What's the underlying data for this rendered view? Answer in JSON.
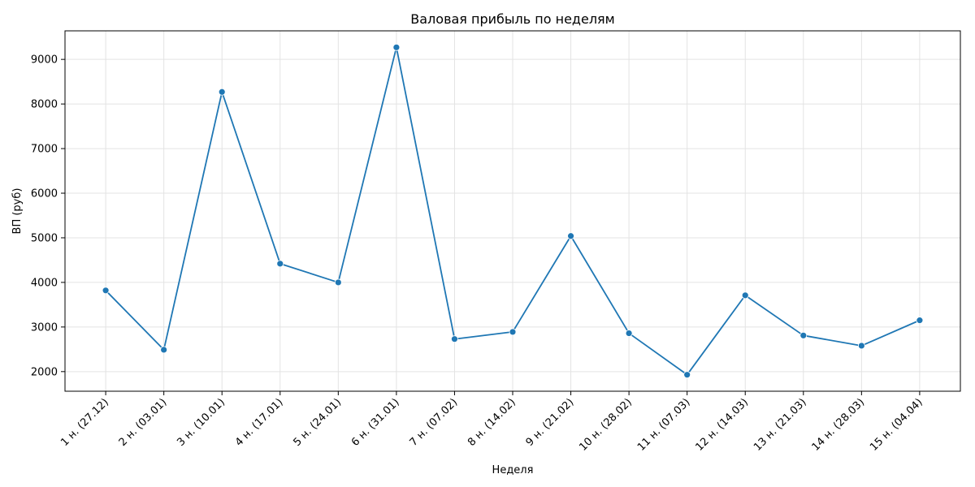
{
  "chart_data": {
    "type": "line",
    "title": "Валовая прибыль по неделям",
    "xlabel": "Неделя",
    "ylabel": "ВП (руб)",
    "categories": [
      "1 н. (27.12)",
      "2 н. (03.01)",
      "3 н. (10.01)",
      "4 н. (17.01)",
      "5 н. (24.01)",
      "6 н. (31.01)",
      "7 н. (07.02)",
      "8 н. (14.02)",
      "9 н. (21.02)",
      "10 н. (28.02)",
      "11 н. (07.03)",
      "12 н. (14.03)",
      "13 н. (21.03)",
      "14 н. (28.03)",
      "15 н. (04.04)"
    ],
    "series": [
      {
        "values": [
          3820,
          2490,
          8270,
          4420,
          4000,
          9270,
          2730,
          2890,
          5040,
          2860,
          1930,
          3710,
          2810,
          2580,
          3150
        ],
        "color": "#1f77b4",
        "marker": "circle"
      }
    ],
    "ylim": [
      1560,
      9640
    ],
    "yticks": [
      2000,
      3000,
      4000,
      5000,
      6000,
      7000,
      8000,
      9000
    ],
    "grid": true,
    "legend": "none"
  }
}
